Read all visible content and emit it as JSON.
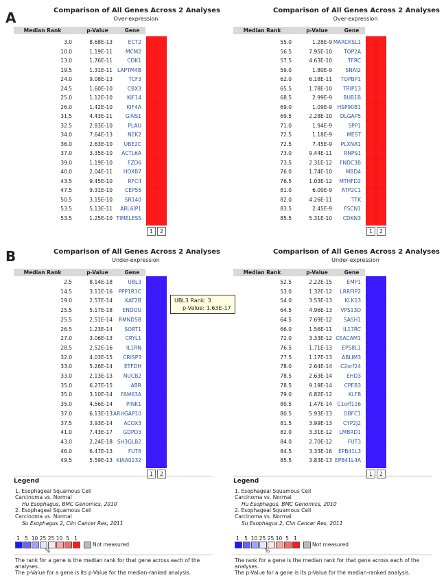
{
  "panels": [
    {
      "label": "A",
      "tables": [
        {
          "title": "Comparison of All Genes Across 2 Analyses",
          "subtitle": "Over-expression",
          "headers": [
            "Median Rank",
            "p-Value",
            "Gene"
          ],
          "color": "#ff1a1a",
          "col_labels": [
            "1",
            "2"
          ],
          "rows": [
            [
              "3.0",
              "8.68E-13",
              "ECT2"
            ],
            [
              "10.0",
              "1.19E-11",
              "MCM2"
            ],
            [
              "13.0",
              "1.76E-11",
              "CDK1"
            ],
            [
              "19.5",
              "1.31E-11",
              "LAPTM4B"
            ],
            [
              "24.0",
              "9.08E-13",
              "TCF3"
            ],
            [
              "24.5",
              "1.60E-10",
              "CBX3"
            ],
            [
              "25.0",
              "1.12E-10",
              "KIF14"
            ],
            [
              "26.0",
              "1.42E-10",
              "KIF4A"
            ],
            [
              "31.5",
              "4.43E-11",
              "GINS1"
            ],
            [
              "32.5",
              "2.83E-10",
              "PLAU"
            ],
            [
              "34.0",
              "7.64E-13",
              "NEK2"
            ],
            [
              "36.0",
              "2.63E-10",
              "UBE2C"
            ],
            [
              "37.0",
              "3.35E-10",
              "ACTL6A"
            ],
            [
              "39.0",
              "1.19E-10",
              "FZD6"
            ],
            [
              "40.0",
              "2.04E-11",
              "HOXB7"
            ],
            [
              "43.5",
              "9.45E-10",
              "RFC4"
            ],
            [
              "47.5",
              "9.31E-10",
              "CEP55"
            ],
            [
              "50.5",
              "3.15E-10",
              "SR140"
            ],
            [
              "53.5",
              "5.13E-11",
              "ARL6IP1"
            ],
            [
              "53.5",
              "1.25E-10",
              "TIMELESS"
            ]
          ]
        },
        {
          "title": "Comparison of All Genes Across 2 Analyses",
          "subtitle": "Over-expression",
          "headers": [
            "Median Rank",
            "p-Value",
            "Gene"
          ],
          "color": "#ff1a1a",
          "col_labels": [
            "1",
            "2"
          ],
          "rows": [
            [
              "55.0",
              "1.28E-9",
              "MARCKSL1"
            ],
            [
              "56.5",
              "7.95E-10",
              "TOP2A"
            ],
            [
              "57.5",
              "4.63E-10",
              "TFRC"
            ],
            [
              "59.0",
              "1.80E-9",
              "SNAI2"
            ],
            [
              "62.0",
              "6.18E-11",
              "TOPBP1"
            ],
            [
              "65.5",
              "1.78E-10",
              "TRIP13"
            ],
            [
              "68.5",
              "2.99E-9",
              "BUB1B"
            ],
            [
              "69.0",
              "1.09E-9",
              "HSP90B1"
            ],
            [
              "69.5",
              "2.28E-10",
              "DLGAP5"
            ],
            [
              "71.0",
              "1.94E-9",
              "SPP1"
            ],
            [
              "72.5",
              "1.18E-9",
              "MEST"
            ],
            [
              "72.5",
              "7.45E-9",
              "PLXNA1"
            ],
            [
              "73.0",
              "9.44E-11",
              "RNPS1"
            ],
            [
              "73.5",
              "2.31E-12",
              "FNDC3B"
            ],
            [
              "76.0",
              "1.74E-10",
              "MBD4"
            ],
            [
              "76.5",
              "1.03E-12",
              "MTHFD2"
            ],
            [
              "81.0",
              "6.00E-9",
              "ATP2C1"
            ],
            [
              "82.0",
              "4.26E-11",
              "TTK"
            ],
            [
              "83.5",
              "2.45E-9",
              "FSCN1"
            ],
            [
              "85.5",
              "5.31E-10",
              "CDKN3"
            ]
          ]
        }
      ]
    },
    {
      "label": "B",
      "tables": [
        {
          "title": "Comparison of All Genes Across 2 Analyses",
          "subtitle": "Under-expression",
          "headers": [
            "Median Rank",
            "p-Value",
            "Gene"
          ],
          "color": "#3b1aff",
          "col_labels": [
            "1",
            "2"
          ],
          "tooltip": [
            "UBL3 Rank: 3",
            "p-Value: 1.63E-17"
          ],
          "rows": [
            [
              "2.5",
              "8.14E-18",
              "UBL3"
            ],
            [
              "14.5",
              "3.11E-16",
              "PPP1R3C"
            ],
            [
              "19.0",
              "2.57E-14",
              "KAT2B"
            ],
            [
              "25.5",
              "5.17E-18",
              "ENDOU"
            ],
            [
              "25.5",
              "2.51E-14",
              "RMND5B"
            ],
            [
              "26.5",
              "1.23E-14",
              "SORT1"
            ],
            [
              "27.0",
              "3.06E-13",
              "CRYL1"
            ],
            [
              "28.5",
              "2.52E-16",
              "IL1RN"
            ],
            [
              "32.0",
              "4.03E-15",
              "CRISP3"
            ],
            [
              "33.0",
              "5.26E-14",
              "ETFDH"
            ],
            [
              "33.0",
              "2.13E-13",
              "NUCB2"
            ],
            [
              "35.0",
              "6.27E-15",
              "ABR"
            ],
            [
              "35.0",
              "3.10E-14",
              "FAM63A"
            ],
            [
              "35.0",
              "4.56E-14",
              "PINK1"
            ],
            [
              "37.0",
              "6.13E-13",
              "ARHGAP10"
            ],
            [
              "37.5",
              "3.93E-14",
              "ACOX3"
            ],
            [
              "41.0",
              "7.43E-17",
              "GDPD3"
            ],
            [
              "43.0",
              "2.24E-18",
              "SH3GLB2"
            ],
            [
              "46.0",
              "6.47E-13",
              "FUT6"
            ],
            [
              "49.5",
              "5.59E-13",
              "KIAA0232"
            ]
          ]
        },
        {
          "title": "Comparison of All Genes Across 2 Analyses",
          "subtitle": "Under-expression",
          "headers": [
            "Median Rank",
            "p-Value",
            "Gene"
          ],
          "color": "#3b1aff",
          "col_labels": [
            "1",
            "2"
          ],
          "rows": [
            [
              "52.5",
              "2.22E-15",
              "EMP1"
            ],
            [
              "53.0",
              "1.32E-12",
              "LRRFIP2"
            ],
            [
              "54.0",
              "3.53E-13",
              "KLK13"
            ],
            [
              "64.5",
              "4.96E-13",
              "VPS13D"
            ],
            [
              "64.5",
              "7.69E-12",
              "SASH1"
            ],
            [
              "66.0",
              "1.56E-11",
              "IL17RC"
            ],
            [
              "72.0",
              "3.33E-12",
              "CEACAM1"
            ],
            [
              "76.5",
              "1.71E-13",
              "EPS8L1"
            ],
            [
              "77.5",
              "1.17E-13",
              "ABLIM3"
            ],
            [
              "78.0",
              "2.64E-14",
              "C2orf24"
            ],
            [
              "78.5",
              "2.63E-14",
              "EHD3"
            ],
            [
              "78.5",
              "9.19E-14",
              "CPEB3"
            ],
            [
              "79.0",
              "6.82E-12",
              "KLF8"
            ],
            [
              "80.5",
              "1.47E-14",
              "C1orf116"
            ],
            [
              "80.5",
              "5.93E-13",
              "OBFC1"
            ],
            [
              "81.5",
              "3.99E-13",
              "CYP2J2"
            ],
            [
              "82.0",
              "3.31E-12",
              "LMBRD1"
            ],
            [
              "84.0",
              "2.70E-12",
              "FUT3"
            ],
            [
              "84.5",
              "3.33E-16",
              "EPB41L3"
            ],
            [
              "85.5",
              "3.83E-13",
              "EPB41L4A"
            ]
          ]
        }
      ]
    }
  ],
  "legend": {
    "title": "Legend",
    "items": [
      {
        "text": "1. Esophageal Squamous Cell Carcinoma vs. Normal",
        "source": "Hu Esophagus, BMC Genomics, 2010"
      },
      {
        "text": "2. Esophageal Squamous Cell Carcinoma vs. Normal",
        "source": "Su Esophagus 2, Clin Cancer Res, 2011"
      }
    ],
    "scale": [
      "1",
      "5",
      "10",
      "25",
      "25",
      "10",
      "5",
      "1"
    ],
    "scale_colors": [
      "#1a1aff",
      "#6666ff",
      "#a3a3ff",
      "#e6e6ff",
      "#ffe6e6",
      "#ffa3a3",
      "#ff6666",
      "#ff1a1a"
    ],
    "scale_unit": "%",
    "not_measured": "Not measured",
    "notes": [
      "The rank for a gene is the median rank for that gene across each of the analyses.",
      "The p-Value for a gene is its p-Value for the median-ranked analysis."
    ]
  }
}
